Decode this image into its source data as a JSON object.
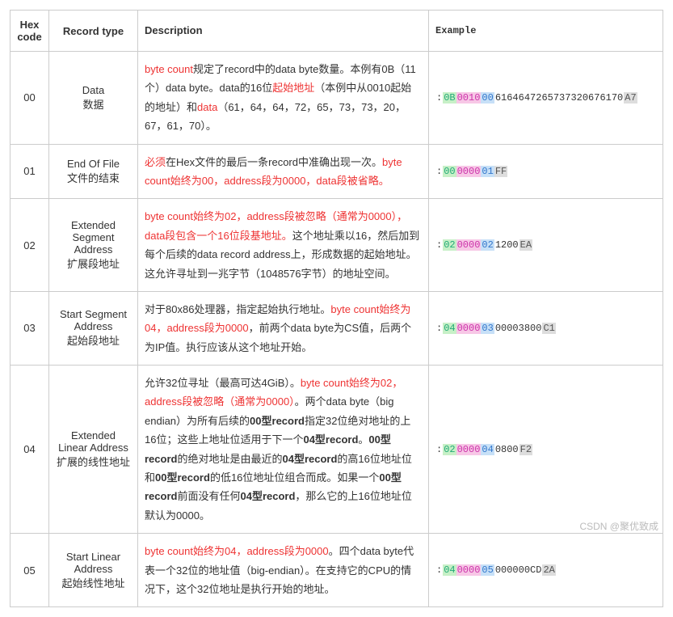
{
  "headers": {
    "hex": "Hex code",
    "type": "Record type",
    "desc": "Description",
    "ex": "Example"
  },
  "rows": [
    {
      "hex": "00",
      "type_en": "Data",
      "type_zh": "数据",
      "desc_parts": [
        {
          "t": "byte count",
          "c": "#e33"
        },
        {
          "t": "规定了record中的data byte数量。本例有0B（11个）data byte。data的16位",
          "c": "#333"
        },
        {
          "t": "起始地址",
          "c": "#e33"
        },
        {
          "t": "（本例中从0010起始的地址）和",
          "c": "#333"
        },
        {
          "t": "data",
          "c": "#e33"
        },
        {
          "t": "（61，64，64，72，65，73，73，20，67，61，70）。",
          "c": "#333"
        }
      ],
      "ex_parts": [
        {
          "t": ":",
          "bg": "#ffffff",
          "c": "#333"
        },
        {
          "t": "0B",
          "bg": "#c7f0c7",
          "c": "#2a7"
        },
        {
          "t": "0010",
          "bg": "#f7c7e6",
          "c": "#c3a"
        },
        {
          "t": "00",
          "bg": "#c7e0f7",
          "c": "#37c"
        },
        {
          "t": "6164647265737320676170",
          "bg": "#ffffff",
          "c": "#333"
        },
        {
          "t": "A7",
          "bg": "#dddddd",
          "c": "#555"
        }
      ]
    },
    {
      "hex": "01",
      "type_en": "End Of File",
      "type_zh": "文件的结束",
      "desc_parts": [
        {
          "t": "必须",
          "c": "#e33"
        },
        {
          "t": "在Hex文件的最后一条record中准确出现一次。",
          "c": "#333"
        },
        {
          "t": "byte count始终为00，address段为0000，data段被省略。",
          "c": "#e33"
        }
      ],
      "ex_parts": [
        {
          "t": ":",
          "bg": "#ffffff",
          "c": "#333"
        },
        {
          "t": "00",
          "bg": "#c7f0c7",
          "c": "#2a7"
        },
        {
          "t": "0000",
          "bg": "#f7c7e6",
          "c": "#c3a"
        },
        {
          "t": "01",
          "bg": "#c7e0f7",
          "c": "#37c"
        },
        {
          "t": "FF",
          "bg": "#dddddd",
          "c": "#555"
        }
      ]
    },
    {
      "hex": "02",
      "type_en": "Extended Segment Address",
      "type_zh": "扩展段地址",
      "desc_parts": [
        {
          "t": "byte count始终为02，address段被忽略（通常为0000），data段包含一个16位段基地址。",
          "c": "#e33"
        },
        {
          "t": "这个地址乘以16，然后加到每个后续的data record address上，形成数据的起始地址。这允许寻址到一兆字节（1048576字节）的地址空间。",
          "c": "#333"
        }
      ],
      "ex_parts": [
        {
          "t": ":",
          "bg": "#ffffff",
          "c": "#333"
        },
        {
          "t": "02",
          "bg": "#c7f0c7",
          "c": "#2a7"
        },
        {
          "t": "0000",
          "bg": "#f7c7e6",
          "c": "#c3a"
        },
        {
          "t": "02",
          "bg": "#c7e0f7",
          "c": "#37c"
        },
        {
          "t": "1200",
          "bg": "#ffffff",
          "c": "#333"
        },
        {
          "t": "EA",
          "bg": "#dddddd",
          "c": "#555"
        }
      ]
    },
    {
      "hex": "03",
      "type_en": "Start Segment Address",
      "type_zh": "起始段地址",
      "desc_parts": [
        {
          "t": "对于80x86处理器，指定起始执行地址。",
          "c": "#333"
        },
        {
          "t": "byte count始终为04，address段为0000",
          "c": "#e33"
        },
        {
          "t": "，前两个data byte为CS值，后两个为IP值。执行应该从这个地址开始。",
          "c": "#333"
        }
      ],
      "ex_parts": [
        {
          "t": ":",
          "bg": "#ffffff",
          "c": "#333"
        },
        {
          "t": "04",
          "bg": "#c7f0c7",
          "c": "#2a7"
        },
        {
          "t": "0000",
          "bg": "#f7c7e6",
          "c": "#c3a"
        },
        {
          "t": "03",
          "bg": "#c7e0f7",
          "c": "#37c"
        },
        {
          "t": "00003800",
          "bg": "#ffffff",
          "c": "#333"
        },
        {
          "t": "C1",
          "bg": "#dddddd",
          "c": "#555"
        }
      ]
    },
    {
      "hex": "04",
      "type_en": "Extended Linear Address",
      "type_zh": "扩展的线性地址",
      "desc_parts": [
        {
          "t": "允许32位寻址（最高可达4GiB）。",
          "c": "#333"
        },
        {
          "t": "byte count始终为02，address段被忽略（通常为0000）",
          "c": "#e33"
        },
        {
          "t": "。两个data byte（big endian）为所有后续的",
          "c": "#333"
        },
        {
          "t": "00型record",
          "c": "#333",
          "b": true
        },
        {
          "t": "指定32位绝对地址的上16位；这些上地址位适用于下一个",
          "c": "#333"
        },
        {
          "t": "04型record",
          "c": "#333",
          "b": true
        },
        {
          "t": "。",
          "c": "#333"
        },
        {
          "t": "00型record",
          "c": "#333",
          "b": true
        },
        {
          "t": "的绝对地址是由最近的",
          "c": "#333"
        },
        {
          "t": "04型record",
          "c": "#333",
          "b": true
        },
        {
          "t": "的高16位地址位和",
          "c": "#333"
        },
        {
          "t": "00型record",
          "c": "#333",
          "b": true
        },
        {
          "t": "的低16位地址位组合而成。如果一个",
          "c": "#333"
        },
        {
          "t": "00型record",
          "c": "#333",
          "b": true
        },
        {
          "t": "前面没有任何",
          "c": "#333"
        },
        {
          "t": "04型record",
          "c": "#333",
          "b": true
        },
        {
          "t": "，那么它的上16位地址位默认为0000。",
          "c": "#333"
        }
      ],
      "ex_parts": [
        {
          "t": ":",
          "bg": "#ffffff",
          "c": "#333"
        },
        {
          "t": "02",
          "bg": "#c7f0c7",
          "c": "#2a7"
        },
        {
          "t": "0000",
          "bg": "#f7c7e6",
          "c": "#c3a"
        },
        {
          "t": "04",
          "bg": "#c7e0f7",
          "c": "#37c"
        },
        {
          "t": "0800",
          "bg": "#ffffff",
          "c": "#333"
        },
        {
          "t": "F2",
          "bg": "#dddddd",
          "c": "#555"
        }
      ]
    },
    {
      "hex": "05",
      "type_en": "Start Linear Address",
      "type_zh": "起始线性地址",
      "desc_parts": [
        {
          "t": "byte count始终为04，address段为0000",
          "c": "#e33"
        },
        {
          "t": "。四个data byte代表一个32位的地址值（big-endian）。在支持它的CPU的情况下，这个32位地址是执行开始的地址。",
          "c": "#333"
        }
      ],
      "ex_parts": [
        {
          "t": ":",
          "bg": "#ffffff",
          "c": "#333"
        },
        {
          "t": "04",
          "bg": "#c7f0c7",
          "c": "#2a7"
        },
        {
          "t": "0000",
          "bg": "#f7c7e6",
          "c": "#c3a"
        },
        {
          "t": "05",
          "bg": "#c7e0f7",
          "c": "#37c"
        },
        {
          "t": "000000CD",
          "bg": "#ffffff",
          "c": "#333"
        },
        {
          "t": "2A",
          "bg": "#dddddd",
          "c": "#555"
        }
      ]
    }
  ],
  "watermark": "CSDN @聚优致成"
}
